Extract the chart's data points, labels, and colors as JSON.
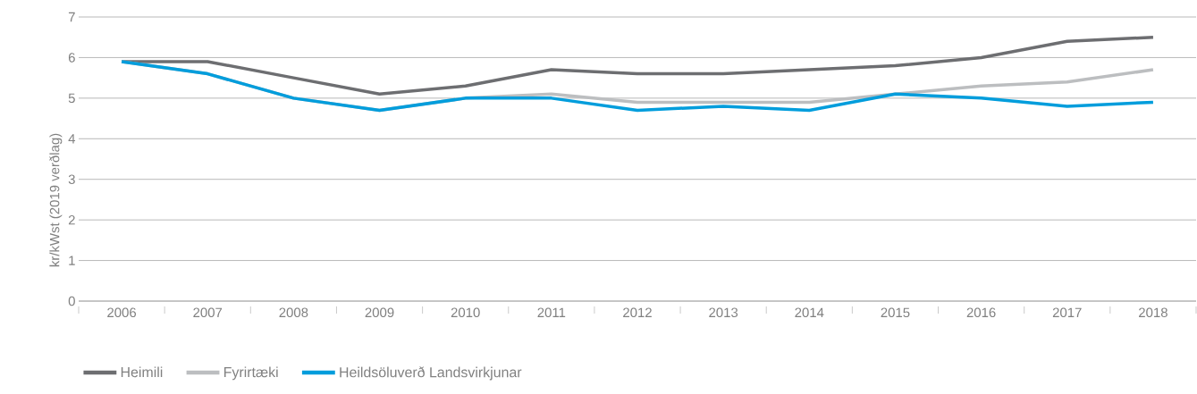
{
  "chart_data": {
    "type": "line",
    "ylabel": "kr/kWst (2019 verðlag)",
    "categories": [
      "2006",
      "2007",
      "2008",
      "2009",
      "2010",
      "2011",
      "2012",
      "2013",
      "2014",
      "2015",
      "2016",
      "2017",
      "2018"
    ],
    "series": [
      {
        "name": "Heimili",
        "color": "#6d6e71",
        "values": [
          5.9,
          5.9,
          5.5,
          5.1,
          5.3,
          5.7,
          5.6,
          5.6,
          5.7,
          5.8,
          6.0,
          6.4,
          6.5
        ]
      },
      {
        "name": "Fyrirtæki",
        "color": "#bcbec0",
        "values": [
          5.9,
          5.6,
          5.0,
          4.7,
          5.0,
          5.1,
          4.9,
          4.9,
          4.9,
          5.1,
          5.3,
          5.4,
          5.7
        ]
      },
      {
        "name": "Heildsöluverð Landsvirkjunar",
        "color": "#009ddc",
        "values": [
          5.9,
          5.6,
          5.0,
          4.7,
          5.0,
          5.0,
          4.7,
          4.8,
          4.7,
          5.1,
          5.0,
          4.8,
          4.9
        ]
      }
    ],
    "ylim": [
      0,
      7
    ],
    "yticks": [
      0,
      1,
      2,
      3,
      4,
      5,
      6,
      7
    ],
    "grid": "y",
    "legend": "bottom",
    "marker": "none",
    "line_style": "solid"
  }
}
